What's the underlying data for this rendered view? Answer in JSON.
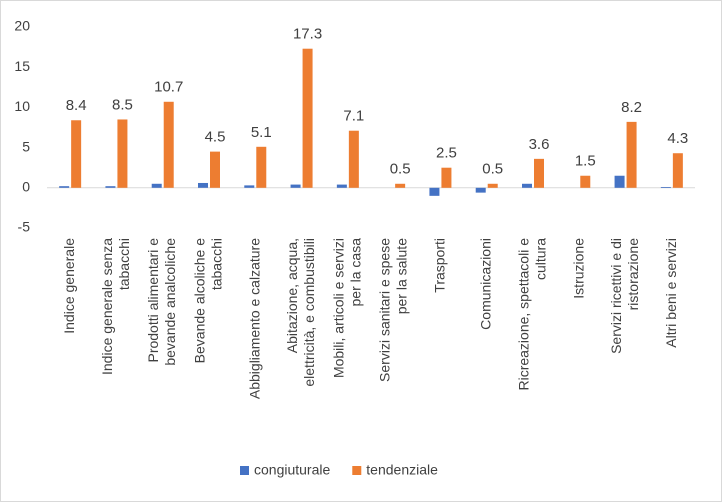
{
  "chart_data": {
    "type": "bar",
    "categories": [
      "Indice generale",
      "Indice generale senza tabacchi",
      "Prodotti alimentari e bevande analcoliche",
      "Bevande alcoliche e tabacchi",
      "Abbigliamento e calzature",
      "Abitazione, acqua, elettricità, e combustibili",
      "Mobili, articoli e servizi per la casa",
      "Servizi sanitari e spese per la salute",
      "Trasporti",
      "Comunicazioni",
      "Ricreazione, spettacoli e cultura",
      "Istruzione",
      "Servizi ricettivi e di ristorazione",
      "Altri beni e servizi"
    ],
    "series": [
      {
        "name": "congiuturale",
        "color": "#4472c4",
        "values": [
          0.2,
          0.2,
          0.5,
          0.6,
          0.3,
          0.4,
          0.4,
          0.0,
          -1.0,
          -0.6,
          0.5,
          0.0,
          1.5,
          0.1
        ]
      },
      {
        "name": "tendenziale",
        "color": "#ed7d31",
        "values": [
          8.4,
          8.5,
          10.7,
          4.5,
          5.1,
          17.3,
          7.1,
          0.5,
          2.5,
          0.5,
          3.6,
          1.5,
          8.2,
          4.3
        ],
        "show_labels": true
      }
    ],
    "ylim": [
      -5,
      20
    ],
    "yticks": [
      -5,
      0,
      5,
      10,
      15,
      20
    ],
    "grid": false,
    "legend": "bottom"
  }
}
